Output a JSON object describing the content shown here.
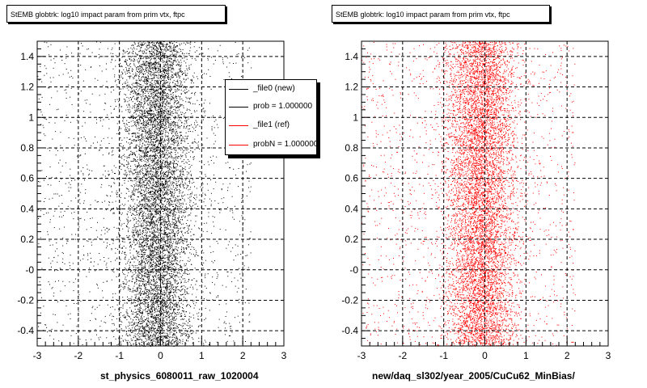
{
  "chart_data": [
    {
      "type": "scatter",
      "title": "StEMB globtrk: log10 impact param from prim vtx, ftpc",
      "xlabel": "st_physics_6080011_raw_1020004",
      "ylabel": "",
      "xlim": [
        -3,
        3
      ],
      "ylim": [
        -0.5,
        1.5
      ],
      "xticks": [
        -3,
        -2,
        -1,
        0,
        1,
        2,
        3
      ],
      "xtick_labels": [
        "-3",
        "-2",
        "-1",
        "0",
        "1",
        "2",
        "3"
      ],
      "yticks": [
        -0.4,
        -0.2,
        0,
        0.2,
        0.4,
        0.6,
        0.8,
        1,
        1.2,
        1.4
      ],
      "ytick_labels": [
        "-0.4",
        "-0.2",
        "-0",
        "0.2",
        "0.4",
        "0.6",
        "0.8",
        "1",
        "1.2",
        "1.4"
      ],
      "grid": true,
      "series": [
        {
          "name": "_file0 (new)",
          "color": "#000000",
          "x_center": -0.1,
          "x_core_range": [
            -1.0,
            1.0
          ],
          "x_tail_range": [
            -3.0,
            2.2
          ]
        }
      ],
      "legend": {
        "placement": "top-right",
        "entries": [
          {
            "label": "_file0 (new)",
            "color": "#000000"
          },
          {
            "label": "prob = 1.000000",
            "color": "#000000"
          },
          {
            "label": "_file1 (ref)",
            "color": "#ff0000"
          },
          {
            "label": "probN = 1.000000",
            "color": "#ff0000"
          }
        ]
      }
    },
    {
      "type": "scatter",
      "title": "StEMB globtrk: log10 impact param from prim vtx, ftpc",
      "xlabel": "new/daq_sl302/year_2005/CuCu62_MinBias/",
      "ylabel": "",
      "xlim": [
        -3,
        3
      ],
      "ylim": [
        -0.5,
        1.5
      ],
      "xticks": [
        -3,
        -2,
        -1,
        0,
        1,
        2,
        3
      ],
      "xtick_labels": [
        "-3",
        "-2",
        "-1",
        "0",
        "1",
        "2",
        "3"
      ],
      "yticks": [
        -0.4,
        -0.2,
        0,
        0.2,
        0.4,
        0.6,
        0.8,
        1,
        1.2,
        1.4
      ],
      "ytick_labels": [
        "-0.4",
        "-0.2",
        "-0",
        "0.2",
        "0.4",
        "0.6",
        "0.8",
        "1",
        "1.2",
        "1.4"
      ],
      "grid": true,
      "series": [
        {
          "name": "_file1 (ref)",
          "color": "#ff0000",
          "x_center": -0.1,
          "x_core_range": [
            -1.0,
            1.0
          ],
          "x_tail_range": [
            -3.0,
            2.2
          ]
        }
      ]
    }
  ]
}
